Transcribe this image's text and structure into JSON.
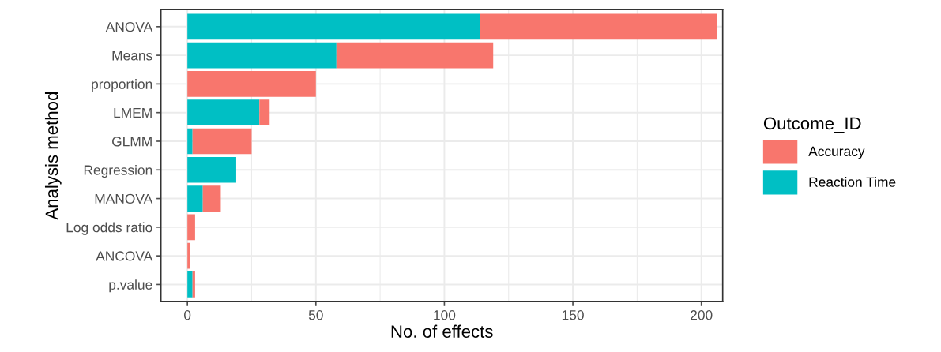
{
  "chart_data": {
    "type": "bar",
    "orientation": "horizontal",
    "stacked": true,
    "xlabel": "No. of effects",
    "ylabel": "Analysis method",
    "legend_title": "Outcome_ID",
    "categories": [
      "ANOVA",
      "Means",
      "proportion",
      "LMEM",
      "GLMM",
      "Regression",
      "MANOVA",
      "Log odds ratio",
      "ANCOVA",
      "p.value"
    ],
    "series": [
      {
        "name": "Reaction Time",
        "color": "#00bfc4",
        "values": [
          114,
          58,
          0,
          28,
          2,
          19,
          6,
          0,
          0,
          2
        ]
      },
      {
        "name": "Accuracy",
        "color": "#f8766d",
        "values": [
          92,
          61,
          50,
          4,
          23,
          0,
          7,
          3,
          1,
          1
        ]
      }
    ],
    "xlim": [
      -10.3,
      208.3
    ],
    "xticks": [
      0,
      50,
      100,
      150,
      200
    ],
    "grid": true,
    "legend": "right"
  }
}
